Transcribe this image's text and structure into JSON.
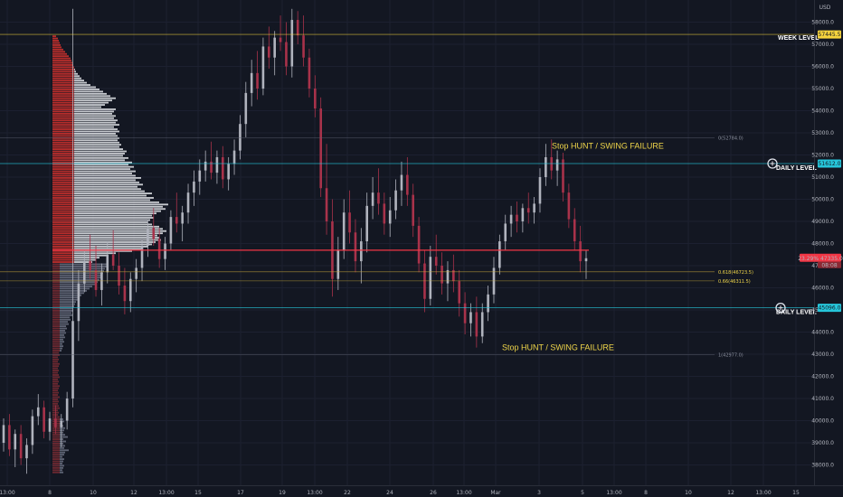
{
  "chart_data": {
    "type": "candlestick",
    "currency": "USD",
    "y_axis": {
      "ticks": [
        38000,
        39000,
        40000,
        41000,
        42000,
        43000,
        44000,
        45000,
        46000,
        47000,
        48000,
        49000,
        50000,
        51000,
        52000,
        53000,
        54000,
        55000,
        56000,
        57000,
        58000
      ],
      "range": [
        37400,
        58500
      ]
    },
    "x_axis": {
      "ticks": [
        "13:00",
        "8",
        "10",
        "12",
        "13:00",
        "15",
        "17",
        "19",
        "13:00",
        "22",
        "24",
        "26",
        "13:00",
        "Mar",
        "3",
        "5",
        "13:00",
        "8",
        "10",
        "12",
        "13:00",
        "15"
      ]
    },
    "price_markers": [
      {
        "text": "57445.5",
        "price": 57445.5,
        "color": "#f5d33d",
        "text_color": "#131722"
      },
      {
        "text": "51612.0",
        "price": 51612,
        "color": "#26c6da",
        "text_color": "#131722"
      },
      {
        "text": "45096.0",
        "price": 45096,
        "color": "#26c6da",
        "text_color": "#131722"
      }
    ],
    "current_price": {
      "line1": "23.29% 47335.0",
      "line2": "08:08",
      "price": 47335,
      "color": "#f23645"
    },
    "levels": [
      {
        "label": "WEEK LEVEL",
        "price": 57445.5,
        "color": "#f5d33d"
      },
      {
        "label": "DAILY LEVEL",
        "price": 51612,
        "color": "#26c6da"
      },
      {
        "label": "DAILY LEVEL",
        "price": 45096,
        "color": "#26c6da"
      }
    ],
    "fib_levels": [
      {
        "text": "0(52784.0)",
        "price": 52784,
        "style": "grey"
      },
      {
        "text": "0.618(46723.5)",
        "price": 46723.5,
        "style": "gold"
      },
      {
        "text": "0.66(46311.5)",
        "price": 46311.5,
        "style": "gold"
      },
      {
        "text": "1(42977.0)",
        "price": 42977,
        "style": "grey"
      }
    ],
    "poc_price": 47700,
    "annotations": [
      {
        "text": "Stop HUNT / SWING FAILURE",
        "price": 52400
      },
      {
        "text": "Stop HUNT / SWING FAILURE",
        "price": 43300
      }
    ],
    "candles": [
      [
        39000,
        40100,
        38600,
        39800
      ],
      [
        39800,
        40300,
        38400,
        38700
      ],
      [
        38700,
        39600,
        37900,
        39400
      ],
      [
        39400,
        39800,
        38000,
        38300
      ],
      [
        38300,
        39200,
        37600,
        38900
      ],
      [
        38900,
        40500,
        38500,
        40200
      ],
      [
        40200,
        41200,
        39800,
        40600
      ],
      [
        40600,
        40900,
        39200,
        39500
      ],
      [
        39500,
        40400,
        39100,
        40100
      ],
      [
        40100,
        40700,
        39400,
        39700
      ],
      [
        39700,
        40300,
        38800,
        40000
      ],
      [
        40000,
        41300,
        39600,
        41000
      ],
      [
        41000,
        58600,
        40600,
        44500
      ],
      [
        44500,
        46800,
        43600,
        46200
      ],
      [
        46200,
        47700,
        45800,
        47200
      ],
      [
        47200,
        48400,
        46400,
        46800
      ],
      [
        46800,
        47900,
        45600,
        45900
      ],
      [
        45900,
        47100,
        45200,
        46700
      ],
      [
        46700,
        48100,
        46200,
        47500
      ],
      [
        47500,
        48600,
        46800,
        47000
      ],
      [
        47000,
        47600,
        45700,
        46100
      ],
      [
        46100,
        46900,
        44800,
        45400
      ],
      [
        45400,
        46700,
        44900,
        46400
      ],
      [
        46400,
        47300,
        45800,
        46900
      ],
      [
        46900,
        48200,
        46300,
        47900
      ],
      [
        47900,
        49100,
        47400,
        48700
      ],
      [
        48700,
        49600,
        47900,
        48200
      ],
      [
        48200,
        48700,
        46900,
        47300
      ],
      [
        47300,
        48300,
        46800,
        48000
      ],
      [
        48000,
        49500,
        47700,
        49200
      ],
      [
        49200,
        50300,
        48500,
        48900
      ],
      [
        48900,
        49700,
        48100,
        49400
      ],
      [
        49400,
        50700,
        48900,
        50300
      ],
      [
        50300,
        51300,
        49700,
        50800
      ],
      [
        50800,
        51800,
        50200,
        51300
      ],
      [
        51300,
        52200,
        50800,
        51700
      ],
      [
        51700,
        52600,
        50900,
        51200
      ],
      [
        51200,
        52200,
        50700,
        51900
      ],
      [
        51900,
        52400,
        50500,
        50900
      ],
      [
        50900,
        51900,
        50400,
        51600
      ],
      [
        51600,
        52700,
        51100,
        52200
      ],
      [
        52200,
        53800,
        51800,
        53400
      ],
      [
        53400,
        55300,
        52800,
        54800
      ],
      [
        54800,
        56300,
        54200,
        55700
      ],
      [
        55700,
        56700,
        54500,
        55000
      ],
      [
        55000,
        57300,
        54700,
        56900
      ],
      [
        56900,
        57800,
        55900,
        56400
      ],
      [
        56400,
        57600,
        55600,
        57300
      ],
      [
        57300,
        58300,
        56700,
        57100
      ],
      [
        57100,
        58000,
        55600,
        56000
      ],
      [
        56000,
        58600,
        55500,
        58100
      ],
      [
        58100,
        58500,
        57000,
        57400
      ],
      [
        57400,
        58300,
        56000,
        56400
      ],
      [
        56400,
        56800,
        54600,
        55000
      ],
      [
        55000,
        55600,
        53700,
        54100
      ],
      [
        54100,
        54600,
        50100,
        50500
      ],
      [
        50500,
        52500,
        48400,
        49000
      ],
      [
        49000,
        50000,
        45600,
        46400
      ],
      [
        46400,
        48300,
        45900,
        47700
      ],
      [
        47700,
        50000,
        47300,
        49400
      ],
      [
        49400,
        50400,
        48000,
        48500
      ],
      [
        48500,
        49100,
        46700,
        47200
      ],
      [
        47200,
        48700,
        46200,
        48100
      ],
      [
        48100,
        50300,
        47600,
        49700
      ],
      [
        49700,
        51000,
        49100,
        50300
      ],
      [
        50300,
        51400,
        49300,
        49800
      ],
      [
        49800,
        50300,
        48400,
        48900
      ],
      [
        48900,
        50100,
        48300,
        49500
      ],
      [
        49500,
        50900,
        49100,
        50400
      ],
      [
        50400,
        51700,
        49700,
        51100
      ],
      [
        51100,
        51900,
        49700,
        50200
      ],
      [
        50200,
        50700,
        48300,
        48800
      ],
      [
        48800,
        49200,
        46700,
        47100
      ],
      [
        47100,
        47700,
        44900,
        45500
      ],
      [
        45500,
        47900,
        45200,
        47400
      ],
      [
        47400,
        48400,
        46600,
        47000
      ],
      [
        47000,
        47600,
        45700,
        46200
      ],
      [
        46200,
        47200,
        45400,
        46800
      ],
      [
        46800,
        47500,
        45800,
        46300
      ],
      [
        46300,
        46800,
        44700,
        45300
      ],
      [
        45300,
        45800,
        43900,
        44400
      ],
      [
        44400,
        45300,
        43800,
        44900
      ],
      [
        44900,
        45600,
        43300,
        43800
      ],
      [
        43800,
        45300,
        43500,
        44900
      ],
      [
        44900,
        46100,
        44500,
        45700
      ],
      [
        45700,
        47400,
        45300,
        46900
      ],
      [
        46900,
        48400,
        46600,
        48100
      ],
      [
        48100,
        49300,
        47700,
        48900
      ],
      [
        48900,
        49700,
        48300,
        49300
      ],
      [
        49300,
        49900,
        48500,
        49000
      ],
      [
        49000,
        49800,
        48500,
        49600
      ],
      [
        49600,
        50300,
        48900,
        49400
      ],
      [
        49400,
        50100,
        48900,
        49800
      ],
      [
        49800,
        51400,
        49400,
        51000
      ],
      [
        51000,
        52500,
        50600,
        51900
      ],
      [
        51900,
        52700,
        50900,
        51300
      ],
      [
        51300,
        52200,
        50600,
        51800
      ],
      [
        51800,
        52100,
        49900,
        50300
      ],
      [
        50300,
        50700,
        48700,
        49100
      ],
      [
        49100,
        49600,
        47700,
        48100
      ],
      [
        48100,
        48800,
        46700,
        47200
      ],
      [
        47200,
        47700,
        46400,
        47335
      ]
    ],
    "volume_profile": {
      "price_start": 37600,
      "step": 100,
      "rows": [
        [
          12,
          0
        ],
        [
          11,
          0
        ],
        [
          12,
          0
        ],
        [
          13,
          0
        ],
        [
          11,
          0
        ],
        [
          12,
          0
        ],
        [
          13,
          0
        ],
        [
          11,
          0
        ],
        [
          13,
          0
        ],
        [
          14,
          0
        ],
        [
          18,
          0
        ],
        [
          13,
          0
        ],
        [
          14,
          0
        ],
        [
          12,
          0
        ],
        [
          15,
          0
        ],
        [
          12,
          0
        ],
        [
          17,
          0
        ],
        [
          14,
          0
        ],
        [
          12,
          0
        ],
        [
          13,
          0
        ],
        [
          14,
          0
        ],
        [
          12,
          0
        ],
        [
          11,
          0
        ],
        [
          13,
          0
        ],
        [
          12,
          0
        ],
        [
          8,
          0
        ],
        [
          6,
          0
        ],
        [
          7,
          0
        ],
        [
          6,
          0
        ],
        [
          8,
          0
        ],
        [
          7,
          0
        ],
        [
          6,
          0
        ],
        [
          7,
          0
        ],
        [
          6,
          0
        ],
        [
          8,
          0
        ],
        [
          6,
          0
        ],
        [
          7,
          0
        ],
        [
          6,
          0
        ],
        [
          7,
          0
        ],
        [
          8,
          0
        ],
        [
          6,
          0
        ],
        [
          7,
          0
        ],
        [
          6,
          0
        ],
        [
          8,
          0
        ],
        [
          7,
          0
        ],
        [
          6,
          0
        ],
        [
          7,
          0
        ],
        [
          6,
          0
        ],
        [
          7,
          0
        ],
        [
          8,
          0
        ],
        [
          6,
          0
        ],
        [
          7,
          0
        ],
        [
          6,
          0
        ],
        [
          8,
          0
        ],
        [
          7,
          0
        ],
        [
          10,
          0
        ],
        [
          11,
          0
        ],
        [
          12,
          0
        ],
        [
          11,
          0
        ],
        [
          13,
          0
        ],
        [
          12,
          0
        ],
        [
          14,
          0
        ],
        [
          13,
          0
        ],
        [
          15,
          0
        ],
        [
          14,
          0
        ],
        [
          16,
          0
        ],
        [
          15,
          0
        ],
        [
          18,
          0
        ],
        [
          17,
          0
        ],
        [
          20,
          0
        ],
        [
          19,
          0
        ],
        [
          22,
          0
        ],
        [
          21,
          0
        ],
        [
          23,
          0
        ],
        [
          22,
          0
        ],
        [
          24,
          0
        ],
        [
          25,
          0
        ],
        [
          26,
          0
        ],
        [
          28,
          0
        ],
        [
          30,
          0
        ],
        [
          32,
          0
        ],
        [
          35,
          0
        ],
        [
          38,
          0
        ],
        [
          41,
          0
        ],
        [
          44,
          0
        ],
        [
          47,
          0
        ],
        [
          50,
          0
        ],
        [
          52,
          0
        ],
        [
          54,
          0
        ],
        [
          55,
          0
        ],
        [
          56,
          0
        ],
        [
          57,
          0
        ],
        [
          58,
          0
        ],
        [
          60,
          0
        ],
        [
          62,
          0
        ],
        [
          44,
          1
        ],
        [
          48,
          1
        ],
        [
          52,
          1
        ],
        [
          60,
          1
        ],
        [
          70,
          1
        ],
        [
          88,
          1
        ],
        [
          100,
          1
        ],
        [
          106,
          1
        ],
        [
          110,
          1
        ],
        [
          114,
          1
        ],
        [
          120,
          1
        ],
        [
          118,
          1
        ],
        [
          116,
          1
        ],
        [
          122,
          1
        ],
        [
          126,
          1
        ],
        [
          122,
          1
        ],
        [
          118,
          1
        ],
        [
          110,
          1
        ],
        [
          105,
          1
        ],
        [
          108,
          1
        ],
        [
          112,
          1
        ],
        [
          110,
          1
        ],
        [
          115,
          1
        ],
        [
          120,
          1
        ],
        [
          125,
          1
        ],
        [
          122,
          1
        ],
        [
          128,
          1
        ],
        [
          118,
          1
        ],
        [
          108,
          1
        ],
        [
          112,
          1
        ],
        [
          104,
          1
        ],
        [
          110,
          1
        ],
        [
          102,
          1
        ],
        [
          98,
          1
        ],
        [
          94,
          1
        ],
        [
          100,
          1
        ],
        [
          96,
          1
        ],
        [
          92,
          1
        ],
        [
          98,
          1
        ],
        [
          92,
          1
        ],
        [
          88,
          1
        ],
        [
          92,
          1
        ],
        [
          86,
          1
        ],
        [
          90,
          1
        ],
        [
          84,
          1
        ],
        [
          88,
          1
        ],
        [
          80,
          1
        ],
        [
          84,
          1
        ],
        [
          78,
          1
        ],
        [
          80,
          1
        ],
        [
          82,
          1
        ],
        [
          78,
          1
        ],
        [
          74,
          1
        ],
        [
          76,
          1
        ],
        [
          74,
          1
        ],
        [
          72,
          1
        ],
        [
          74,
          1
        ],
        [
          72,
          1
        ],
        [
          70,
          1
        ],
        [
          74,
          1
        ],
        [
          72,
          1
        ],
        [
          68,
          1
        ],
        [
          74,
          1
        ],
        [
          70,
          1
        ],
        [
          72,
          1
        ],
        [
          68,
          1
        ],
        [
          70,
          1
        ],
        [
          66,
          1
        ],
        [
          68,
          1
        ],
        [
          70,
          1
        ],
        [
          54,
          1
        ],
        [
          58,
          1
        ],
        [
          62,
          1
        ],
        [
          66,
          1
        ],
        [
          70,
          1
        ],
        [
          64,
          1
        ],
        [
          60,
          1
        ],
        [
          56,
          1
        ],
        [
          52,
          1
        ],
        [
          48,
          1
        ],
        [
          42,
          1
        ],
        [
          38,
          1
        ],
        [
          35,
          1
        ],
        [
          32,
          1
        ],
        [
          30,
          1
        ],
        [
          28,
          1
        ],
        [
          26,
          1
        ],
        [
          25,
          1
        ],
        [
          24,
          1
        ],
        [
          23,
          1
        ],
        [
          22,
          1
        ],
        [
          21,
          1
        ],
        [
          20,
          1
        ],
        [
          18,
          1
        ],
        [
          16,
          1
        ],
        [
          14,
          1
        ],
        [
          12,
          1
        ],
        [
          10,
          1
        ],
        [
          9,
          1
        ],
        [
          8,
          1
        ],
        [
          7,
          1
        ],
        [
          6,
          1
        ],
        [
          4,
          1
        ]
      ]
    }
  }
}
